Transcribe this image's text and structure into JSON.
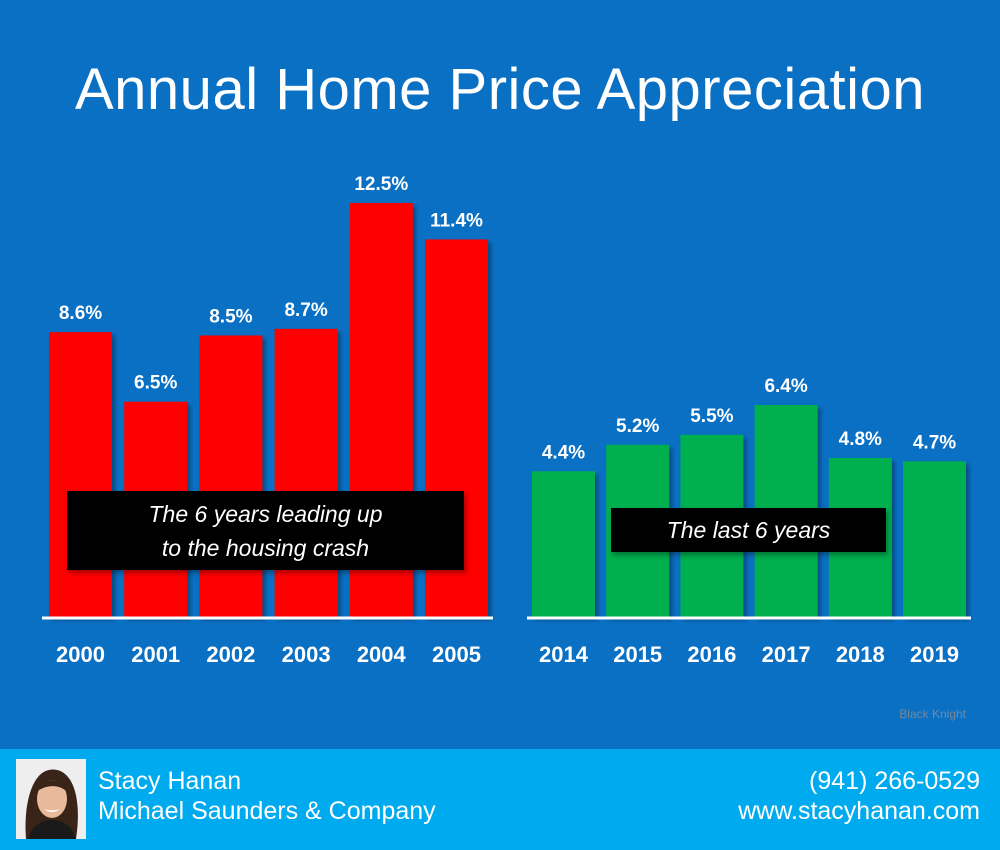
{
  "title": "Annual Home Price Appreciation",
  "colors": {
    "background": "#0a70c4",
    "pre_crash_bars": "#ff0000",
    "recent_bars": "#00b050",
    "footer": "#00aaee"
  },
  "callouts": {
    "pre_crash_line1": "The 6 years leading up",
    "pre_crash_line2": "to the housing crash",
    "recent": "The last 6 years"
  },
  "source": "Black Knight",
  "footer": {
    "name": "Stacy Hanan",
    "company": "Michael Saunders & Company",
    "phone": "(941) 266-0529",
    "website": "www.stacyhanan.com",
    "avatar_icon": "agent-headshot-photo"
  },
  "chart_data": [
    {
      "type": "bar",
      "categories": [
        "2000",
        "2001",
        "2002",
        "2003",
        "2004",
        "2005"
      ],
      "values": [
        8.6,
        6.5,
        8.5,
        8.7,
        12.5,
        11.4
      ],
      "labels": [
        "8.6%",
        "6.5%",
        "8.5%",
        "8.7%",
        "12.5%",
        "11.4%"
      ],
      "color": "#ff0000"
    },
    {
      "type": "bar",
      "categories": [
        "2014",
        "2015",
        "2016",
        "2017",
        "2018",
        "2019"
      ],
      "values": [
        4.4,
        5.2,
        5.5,
        6.4,
        4.8,
        4.7
      ],
      "labels": [
        "4.4%",
        "5.2%",
        "5.5%",
        "6.4%",
        "4.8%",
        "4.7%"
      ],
      "color": "#00b050"
    }
  ]
}
